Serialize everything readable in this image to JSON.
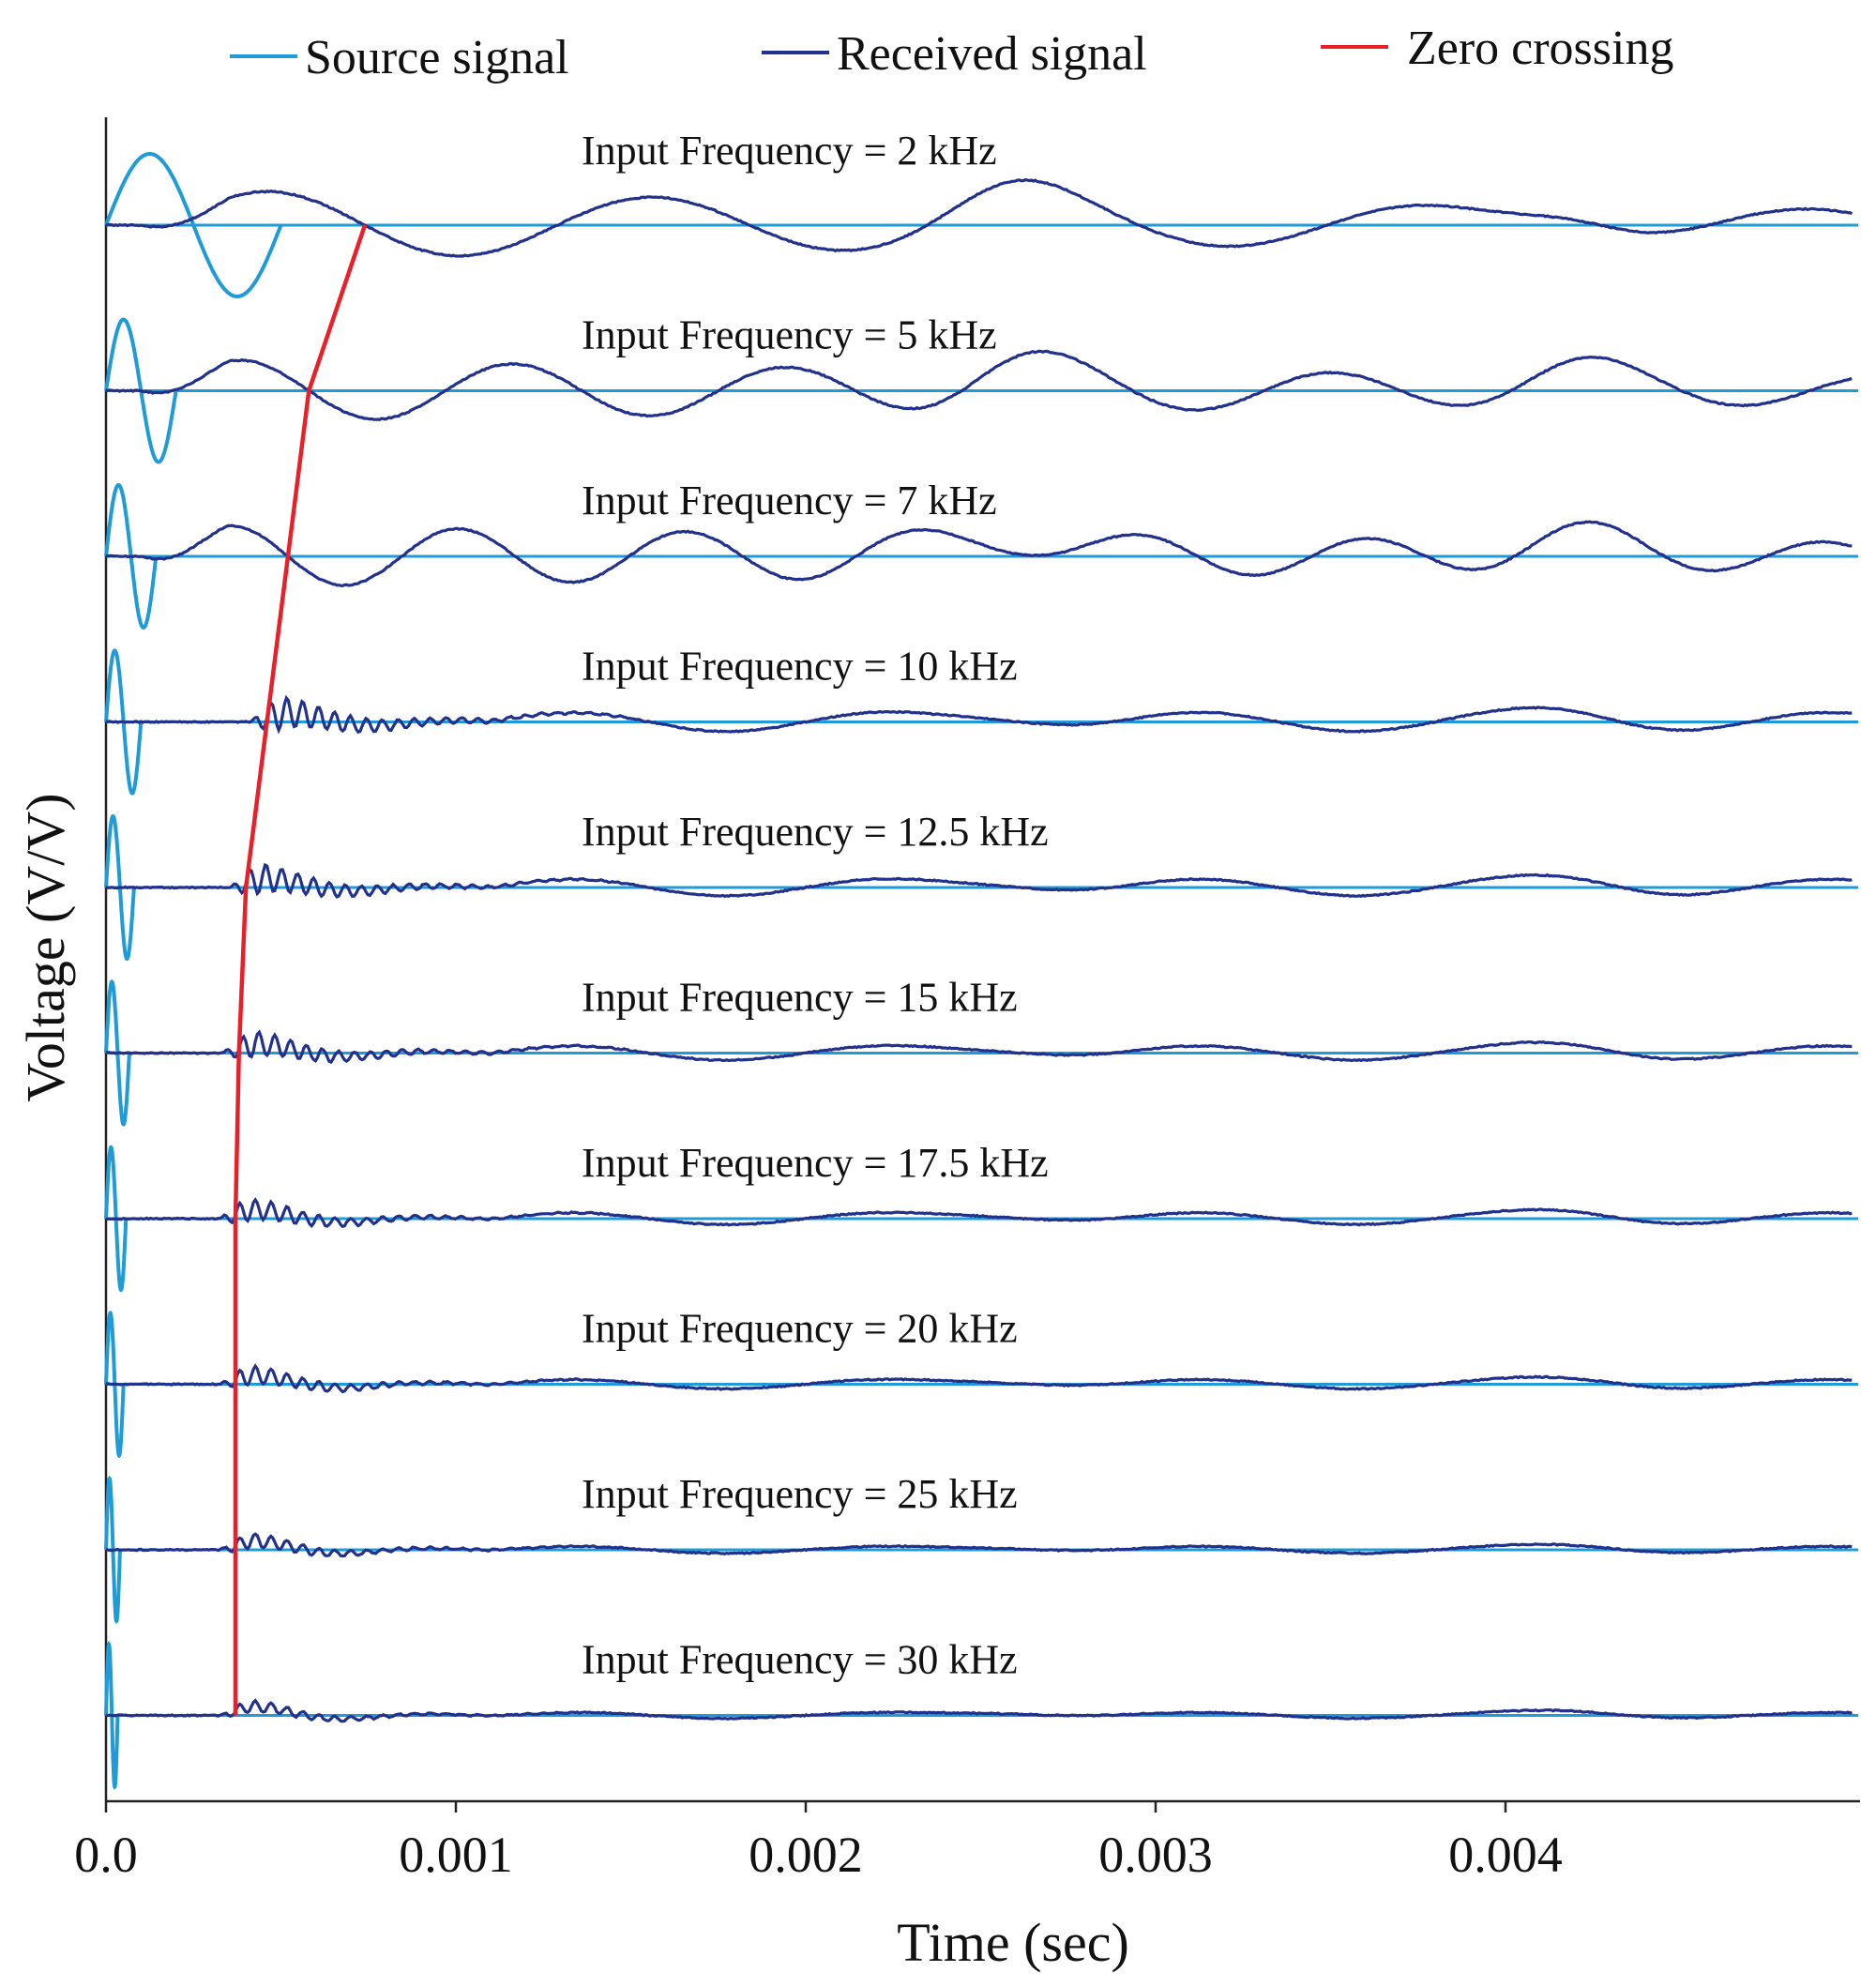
{
  "chart_data": {
    "type": "line",
    "title": "",
    "xlabel": "Time (sec)",
    "ylabel": "Voltage (V/V)",
    "xlim": [
      0,
      0.005
    ],
    "x_ticks": [
      0.0,
      0.001,
      0.002,
      0.003,
      0.004
    ],
    "x_tick_labels": [
      "0.0",
      "0.001",
      "0.002",
      "0.003",
      "0.004"
    ],
    "grid": false,
    "legend_position": "top",
    "legend": [
      {
        "key": "source",
        "label": "Source signal",
        "color": "#1f9bd7"
      },
      {
        "key": "received",
        "label": "Received signal",
        "color": "#22318c"
      },
      {
        "key": "zero",
        "label": "Zero crossing",
        "color": "#e8202a"
      }
    ],
    "panels": [
      {
        "label": "Input Frequency = 2 kHz",
        "frequency_khz": 2,
        "zero_crossing_time": 0.00074
      },
      {
        "label": "Input Frequency = 5 kHz",
        "frequency_khz": 5,
        "zero_crossing_time": 0.00058
      },
      {
        "label": "Input Frequency = 7 kHz",
        "frequency_khz": 7,
        "zero_crossing_time": 0.00052
      },
      {
        "label": "Input Frequency = 10 kHz",
        "frequency_khz": 10,
        "zero_crossing_time": 0.00046
      },
      {
        "label": "Input Frequency = 12.5 kHz",
        "frequency_khz": 12.5,
        "zero_crossing_time": 0.0004
      },
      {
        "label": "Input Frequency = 15 kHz",
        "frequency_khz": 15,
        "zero_crossing_time": 0.00038
      },
      {
        "label": "Input Frequency = 17.5 kHz",
        "frequency_khz": 17.5,
        "zero_crossing_time": 0.00037
      },
      {
        "label": "Input Frequency = 20 kHz",
        "frequency_khz": 20,
        "zero_crossing_time": 0.00037
      },
      {
        "label": "Input Frequency = 25 kHz",
        "frequency_khz": 25,
        "zero_crossing_time": 0.00037
      },
      {
        "label": "Input Frequency = 30 kHz",
        "frequency_khz": 30,
        "zero_crossing_time": 0.00037
      }
    ],
    "source_signal": {
      "amplitude_vv": 1.0,
      "cycles": 1
    },
    "received_signal": {
      "ringing_period_s": 7e-05,
      "ringing_duration_s": 0.0007,
      "late_arrival_times_s": [
        0.00097,
        0.0026,
        0.0042
      ]
    }
  }
}
